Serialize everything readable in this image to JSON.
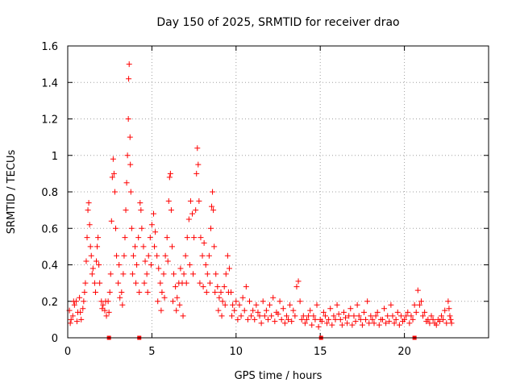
{
  "chart_data": {
    "type": "scatter",
    "title": "Day 150 of 2025, SRMTID for receiver drao",
    "xlabel": "GPS time / hours",
    "ylabel": "SRMTID / TECUs",
    "xlim": [
      0,
      25
    ],
    "ylim": [
      0,
      1.6
    ],
    "xticks": [
      0,
      5,
      10,
      15,
      20
    ],
    "xtick_labels": [
      "0",
      "5",
      "10",
      "15",
      "20"
    ],
    "yticks": [
      0,
      0.2,
      0.4,
      0.6,
      0.8,
      1.0,
      1.2,
      1.4,
      1.6
    ],
    "ytick_labels": [
      "0",
      "0.2",
      "0.4",
      "0.6",
      "0.8",
      "1",
      "1.2",
      "1.4",
      "1.6"
    ],
    "grid": true,
    "color": "#ff0000",
    "series": [
      {
        "name": "SRMTID",
        "marker": "plus",
        "points": [
          [
            0.1,
            0.15
          ],
          [
            0.2,
            0.1
          ],
          [
            0.3,
            0.12
          ],
          [
            0.4,
            0.18
          ],
          [
            0.5,
            0.2
          ],
          [
            0.6,
            0.14
          ],
          [
            0.7,
            0.22
          ],
          [
            0.8,
            0.1
          ],
          [
            0.9,
            0.16
          ],
          [
            1.0,
            0.25
          ],
          [
            1.05,
            0.3
          ],
          [
            1.1,
            0.42
          ],
          [
            1.15,
            0.55
          ],
          [
            1.2,
            0.7
          ],
          [
            1.25,
            0.74
          ],
          [
            1.3,
            0.62
          ],
          [
            1.35,
            0.5
          ],
          [
            1.4,
            0.45
          ],
          [
            1.5,
            0.38
          ],
          [
            1.6,
            0.3
          ],
          [
            1.7,
            0.42
          ],
          [
            1.75,
            0.5
          ],
          [
            1.8,
            0.55
          ],
          [
            1.85,
            0.4
          ],
          [
            1.9,
            0.3
          ],
          [
            2.0,
            0.2
          ],
          [
            2.1,
            0.18
          ],
          [
            2.2,
            0.15
          ],
          [
            2.3,
            0.12
          ],
          [
            2.4,
            0.2
          ],
          [
            2.5,
            0.25
          ],
          [
            2.55,
            0.35
          ],
          [
            2.6,
            0.64
          ],
          [
            2.65,
            0.88
          ],
          [
            2.7,
            0.98
          ],
          [
            2.75,
            0.9
          ],
          [
            2.8,
            0.8
          ],
          [
            2.85,
            0.6
          ],
          [
            2.9,
            0.45
          ],
          [
            3.0,
            0.3
          ],
          [
            3.1,
            0.22
          ],
          [
            3.2,
            0.25
          ],
          [
            3.3,
            0.35
          ],
          [
            3.35,
            0.45
          ],
          [
            3.4,
            0.55
          ],
          [
            3.45,
            0.7
          ],
          [
            3.5,
            0.85
          ],
          [
            3.55,
            1.0
          ],
          [
            3.6,
            1.2
          ],
          [
            3.62,
            1.42
          ],
          [
            3.65,
            1.5
          ],
          [
            3.7,
            1.1
          ],
          [
            3.72,
            0.95
          ],
          [
            3.75,
            0.8
          ],
          [
            3.8,
            0.6
          ],
          [
            3.9,
            0.45
          ],
          [
            4.0,
            0.5
          ],
          [
            4.1,
            0.4
          ],
          [
            4.2,
            0.55
          ],
          [
            4.3,
            0.74
          ],
          [
            4.35,
            0.7
          ],
          [
            4.4,
            0.6
          ],
          [
            4.5,
            0.5
          ],
          [
            4.6,
            0.42
          ],
          [
            4.7,
            0.35
          ],
          [
            4.8,
            0.45
          ],
          [
            4.9,
            0.55
          ],
          [
            5.0,
            0.62
          ],
          [
            5.1,
            0.68
          ],
          [
            5.2,
            0.58
          ],
          [
            5.3,
            0.45
          ],
          [
            5.4,
            0.38
          ],
          [
            5.5,
            0.3
          ],
          [
            5.6,
            0.25
          ],
          [
            5.7,
            0.35
          ],
          [
            5.8,
            0.45
          ],
          [
            5.9,
            0.55
          ],
          [
            6.0,
            0.75
          ],
          [
            6.05,
            0.88
          ],
          [
            6.1,
            0.9
          ],
          [
            6.15,
            0.7
          ],
          [
            6.2,
            0.5
          ],
          [
            6.3,
            0.35
          ],
          [
            6.4,
            0.28
          ],
          [
            6.5,
            0.22
          ],
          [
            6.6,
            0.3
          ],
          [
            6.7,
            0.38
          ],
          [
            6.8,
            0.3
          ],
          [
            6.9,
            0.35
          ],
          [
            7.0,
            0.45
          ],
          [
            7.1,
            0.55
          ],
          [
            7.2,
            0.65
          ],
          [
            7.3,
            0.75
          ],
          [
            7.4,
            0.68
          ],
          [
            7.5,
            0.55
          ],
          [
            7.6,
            0.7
          ],
          [
            7.65,
            0.9
          ],
          [
            7.7,
            1.04
          ],
          [
            7.75,
            0.95
          ],
          [
            7.8,
            0.75
          ],
          [
            7.9,
            0.55
          ],
          [
            8.0,
            0.45
          ],
          [
            8.1,
            0.52
          ],
          [
            8.2,
            0.4
          ],
          [
            8.3,
            0.35
          ],
          [
            8.4,
            0.45
          ],
          [
            8.5,
            0.6
          ],
          [
            8.55,
            0.72
          ],
          [
            8.6,
            0.8
          ],
          [
            8.65,
            0.7
          ],
          [
            8.7,
            0.5
          ],
          [
            8.8,
            0.35
          ],
          [
            8.9,
            0.28
          ],
          [
            9.0,
            0.22
          ],
          [
            9.1,
            0.25
          ],
          [
            9.2,
            0.2
          ],
          [
            9.3,
            0.28
          ],
          [
            9.4,
            0.35
          ],
          [
            9.5,
            0.45
          ],
          [
            9.6,
            0.38
          ],
          [
            9.7,
            0.25
          ],
          [
            9.8,
            0.18
          ],
          [
            9.9,
            0.15
          ],
          [
            10.0,
            0.2
          ],
          [
            10.2,
            0.18
          ],
          [
            10.4,
            0.22
          ],
          [
            10.6,
            0.28
          ],
          [
            10.8,
            0.2
          ],
          [
            11.0,
            0.15
          ],
          [
            11.2,
            0.18
          ],
          [
            11.4,
            0.12
          ],
          [
            11.6,
            0.2
          ],
          [
            11.8,
            0.15
          ],
          [
            12.0,
            0.18
          ],
          [
            12.2,
            0.22
          ],
          [
            12.4,
            0.14
          ],
          [
            12.6,
            0.2
          ],
          [
            12.8,
            0.16
          ],
          [
            13.0,
            0.12
          ],
          [
            13.2,
            0.18
          ],
          [
            13.4,
            0.15
          ],
          [
            13.6,
            0.28
          ],
          [
            13.7,
            0.31
          ],
          [
            13.8,
            0.2
          ],
          [
            14.0,
            0.12
          ],
          [
            14.2,
            0.1
          ],
          [
            14.4,
            0.15
          ],
          [
            14.6,
            0.12
          ],
          [
            14.8,
            0.18
          ],
          [
            15.0,
            0.1
          ],
          [
            15.2,
            0.14
          ],
          [
            15.4,
            0.08
          ],
          [
            15.6,
            0.16
          ],
          [
            15.8,
            0.12
          ],
          [
            16.0,
            0.18
          ],
          [
            16.2,
            0.1
          ],
          [
            16.4,
            0.14
          ],
          [
            16.6,
            0.08
          ],
          [
            16.8,
            0.16
          ],
          [
            17.0,
            0.12
          ],
          [
            17.2,
            0.18
          ],
          [
            17.4,
            0.1
          ],
          [
            17.6,
            0.14
          ],
          [
            17.8,
            0.2
          ],
          [
            18.0,
            0.12
          ],
          [
            18.2,
            0.08
          ],
          [
            18.4,
            0.14
          ],
          [
            18.6,
            0.1
          ],
          [
            18.8,
            0.16
          ],
          [
            19.0,
            0.12
          ],
          [
            19.2,
            0.18
          ],
          [
            19.4,
            0.08
          ],
          [
            19.6,
            0.14
          ],
          [
            19.8,
            0.12
          ],
          [
            20.0,
            0.1
          ],
          [
            20.2,
            0.14
          ],
          [
            20.4,
            0.12
          ],
          [
            20.6,
            0.18
          ],
          [
            20.8,
            0.26
          ],
          [
            21.0,
            0.2
          ],
          [
            21.2,
            0.14
          ],
          [
            21.4,
            0.1
          ],
          [
            21.6,
            0.12
          ],
          [
            21.8,
            0.08
          ],
          [
            22.0,
            0.1
          ],
          [
            22.2,
            0.12
          ],
          [
            22.4,
            0.15
          ],
          [
            22.6,
            0.2
          ],
          [
            22.7,
            0.12
          ],
          [
            22.8,
            0.08
          ],
          [
            0.15,
            0.08
          ],
          [
            0.35,
            0.2
          ],
          [
            0.55,
            0.09
          ],
          [
            0.75,
            0.14
          ],
          [
            0.95,
            0.2
          ],
          [
            1.45,
            0.35
          ],
          [
            1.65,
            0.25
          ],
          [
            2.05,
            0.16
          ],
          [
            2.25,
            0.2
          ],
          [
            2.45,
            0.14
          ],
          [
            3.05,
            0.4
          ],
          [
            3.25,
            0.18
          ],
          [
            3.85,
            0.35
          ],
          [
            4.05,
            0.3
          ],
          [
            4.25,
            0.25
          ],
          [
            4.55,
            0.3
          ],
          [
            4.75,
            0.25
          ],
          [
            4.95,
            0.4
          ],
          [
            5.15,
            0.5
          ],
          [
            5.35,
            0.2
          ],
          [
            5.55,
            0.15
          ],
          [
            5.75,
            0.22
          ],
          [
            5.95,
            0.42
          ],
          [
            6.25,
            0.2
          ],
          [
            6.45,
            0.15
          ],
          [
            6.65,
            0.18
          ],
          [
            6.85,
            0.12
          ],
          [
            7.05,
            0.3
          ],
          [
            7.25,
            0.4
          ],
          [
            7.45,
            0.35
          ],
          [
            7.85,
            0.3
          ],
          [
            8.05,
            0.28
          ],
          [
            8.25,
            0.25
          ],
          [
            8.45,
            0.3
          ],
          [
            8.75,
            0.25
          ],
          [
            8.95,
            0.15
          ],
          [
            9.15,
            0.12
          ],
          [
            9.35,
            0.18
          ],
          [
            9.55,
            0.25
          ],
          [
            9.75,
            0.12
          ],
          [
            10.1,
            0.1
          ],
          [
            10.3,
            0.12
          ],
          [
            10.5,
            0.15
          ],
          [
            10.7,
            0.1
          ],
          [
            10.9,
            0.12
          ],
          [
            11.1,
            0.1
          ],
          [
            11.3,
            0.14
          ],
          [
            11.5,
            0.08
          ],
          [
            11.7,
            0.12
          ],
          [
            11.9,
            0.1
          ],
          [
            12.1,
            0.12
          ],
          [
            12.3,
            0.09
          ],
          [
            12.5,
            0.13
          ],
          [
            12.7,
            0.1
          ],
          [
            12.9,
            0.08
          ],
          [
            13.1,
            0.1
          ],
          [
            13.3,
            0.09
          ],
          [
            13.5,
            0.12
          ],
          [
            13.9,
            0.1
          ],
          [
            14.1,
            0.08
          ],
          [
            14.3,
            0.12
          ],
          [
            14.5,
            0.07
          ],
          [
            14.7,
            0.1
          ],
          [
            14.9,
            0.06
          ],
          [
            15.1,
            0.09
          ],
          [
            15.3,
            0.12
          ],
          [
            15.5,
            0.1
          ],
          [
            15.7,
            0.07
          ],
          [
            15.9,
            0.1
          ],
          [
            16.1,
            0.13
          ],
          [
            16.3,
            0.07
          ],
          [
            16.5,
            0.11
          ],
          [
            16.7,
            0.12
          ],
          [
            16.9,
            0.07
          ],
          [
            17.1,
            0.09
          ],
          [
            17.3,
            0.12
          ],
          [
            17.5,
            0.07
          ],
          [
            17.7,
            0.1
          ],
          [
            17.9,
            0.08
          ],
          [
            18.1,
            0.1
          ],
          [
            18.3,
            0.12
          ],
          [
            18.5,
            0.07
          ],
          [
            18.7,
            0.1
          ],
          [
            18.9,
            0.08
          ],
          [
            19.1,
            0.09
          ],
          [
            19.3,
            0.12
          ],
          [
            19.5,
            0.1
          ],
          [
            19.7,
            0.07
          ],
          [
            19.9,
            0.09
          ],
          [
            20.1,
            0.12
          ],
          [
            20.3,
            0.08
          ],
          [
            20.5,
            0.1
          ],
          [
            20.7,
            0.14
          ],
          [
            20.9,
            0.18
          ],
          [
            21.1,
            0.12
          ],
          [
            21.3,
            0.09
          ],
          [
            21.5,
            0.08
          ],
          [
            21.7,
            0.1
          ],
          [
            21.9,
            0.07
          ],
          [
            22.1,
            0.09
          ],
          [
            22.3,
            0.1
          ],
          [
            22.5,
            0.08
          ],
          [
            22.65,
            0.16
          ],
          [
            22.75,
            0.1
          ]
        ]
      },
      {
        "name": "baseline markers",
        "marker": "square",
        "points": [
          [
            2.45,
            0.0
          ],
          [
            4.25,
            0.0
          ],
          [
            15.05,
            0.0
          ],
          [
            20.6,
            0.0
          ]
        ]
      }
    ]
  }
}
